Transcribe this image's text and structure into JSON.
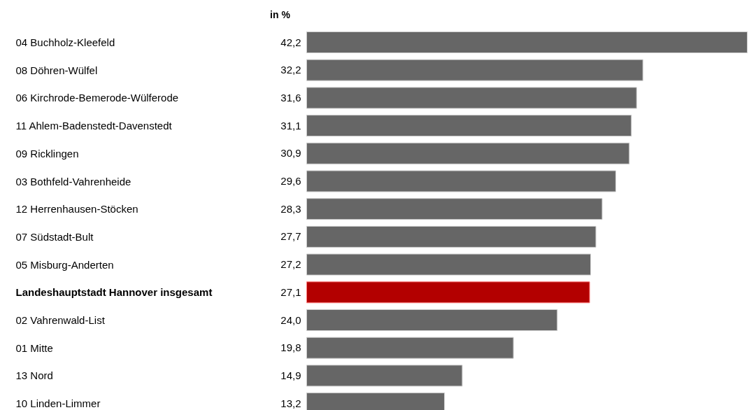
{
  "chart_data": {
    "type": "bar",
    "orientation": "horizontal",
    "relative": false,
    "value_labels": [
      "42,2",
      "32,2",
      "31,6",
      "31,1",
      "30,9",
      "29,6",
      "28,3",
      "27,7",
      "27,2",
      "27,1",
      "24,0",
      "19,8",
      "14,9",
      "13,2"
    ],
    "annotations": [
      "in %"
    ],
    "categories": [
      "04 Buchholz-Kleefeld",
      "08 Döhren-Wülfel",
      "06 Kirchrode-Bemerode-Wülferode",
      "11 Ahlem-Badenstedt-Davenstedt",
      "09 Ricklingen",
      "03 Bothfeld-Vahrenheide",
      "12 Herrenhausen-Stöcken",
      "07 Südstadt-Bult",
      "05 Misburg-Anderten",
      "Landeshauptstadt Hannover insgesamt",
      "02 Vahrenwald-List",
      "01 Mitte",
      "13 Nord",
      "10 Linden-Limmer"
    ],
    "values": [
      42.2,
      32.2,
      31.6,
      31.1,
      30.9,
      29.6,
      28.3,
      27.7,
      27.2,
      27.1,
      24.0,
      19.8,
      14.9,
      13.2
    ],
    "colors": [
      "#666666",
      "#666666",
      "#666666",
      "#666666",
      "#666666",
      "#666666",
      "#666666",
      "#666666",
      "#666666",
      "#b30000",
      "#666666",
      "#666666",
      "#666666",
      "#666666"
    ]
  }
}
